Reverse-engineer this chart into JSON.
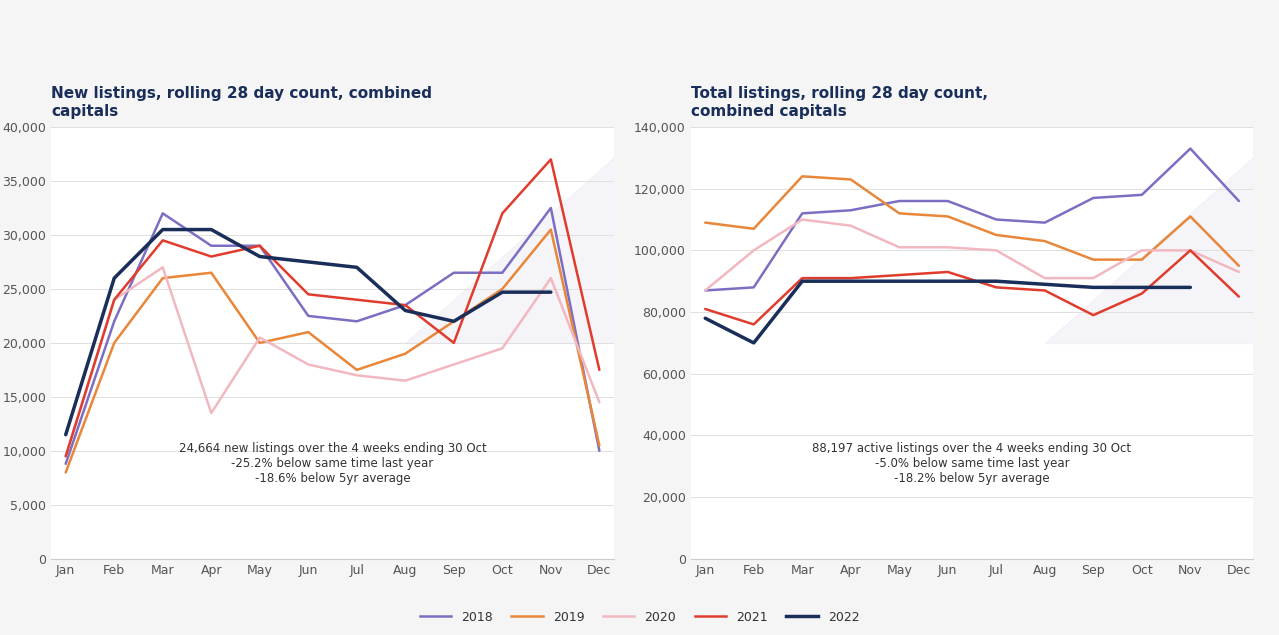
{
  "title_left": "New listings, rolling 28 day count, combined\ncapitals",
  "title_right": "Total listings, rolling 28 day count,\ncombined capitals",
  "title_color": "#1a2e5a",
  "background_color": "#f5f5f5",
  "chart_background": "#ffffff",
  "months": [
    "Jan",
    "Feb",
    "Mar",
    "Apr",
    "May",
    "Jun",
    "Jul",
    "Aug",
    "Sep",
    "Oct",
    "Nov",
    "Dec"
  ],
  "legend_labels": [
    "2018",
    "2019",
    "2020",
    "2021",
    "2022"
  ],
  "colors": {
    "2018": "#7b6fc4",
    "2019": "#e8873a",
    "2020": "#f2b8c0",
    "2021": "#e03c2e",
    "2022": "#1a2e5a"
  },
  "linewidths": {
    "2018": 1.8,
    "2019": 1.8,
    "2020": 1.8,
    "2021": 1.8,
    "2022": 2.5
  },
  "new_listings": {
    "2018": [
      8800,
      22000,
      32000,
      29000,
      29000,
      22500,
      22000,
      23500,
      26500,
      26500,
      32500,
      10000
    ],
    "2019": [
      8000,
      20000,
      26000,
      26500,
      20000,
      21000,
      17500,
      19000,
      22000,
      25000,
      30500,
      10500
    ],
    "2020": [
      9500,
      24000,
      27000,
      13500,
      20500,
      18000,
      17000,
      16500,
      18000,
      19500,
      26000,
      14500
    ],
    "2021": [
      9500,
      24000,
      29500,
      28000,
      29000,
      24500,
      24000,
      23500,
      20000,
      32000,
      37000,
      17500
    ],
    "2022": [
      11500,
      26000,
      30500,
      30500,
      28000,
      27500,
      27000,
      23000,
      22000,
      24700,
      24700,
      null
    ]
  },
  "total_listings": {
    "2018": [
      87000,
      88000,
      112000,
      113000,
      116000,
      116000,
      110000,
      109000,
      117000,
      118000,
      133000,
      116000
    ],
    "2019": [
      109000,
      107000,
      124000,
      123000,
      112000,
      111000,
      105000,
      103000,
      97000,
      97000,
      111000,
      95000
    ],
    "2020": [
      87000,
      100000,
      110000,
      108000,
      101000,
      101000,
      100000,
      91000,
      91000,
      100000,
      100000,
      93000
    ],
    "2021": [
      81000,
      76000,
      91000,
      91000,
      92000,
      93000,
      88000,
      87000,
      79000,
      86000,
      100000,
      85000
    ],
    "2022": [
      78000,
      70000,
      90000,
      90000,
      90000,
      90000,
      90000,
      89000,
      88000,
      88000,
      88000,
      null
    ]
  },
  "new_annotation": "24,664 new listings over the 4 weeks ending 30 Oct\n-25.2% below same time last year\n-18.6% below 5yr average",
  "total_annotation": "88,197 active listings over the 4 weeks ending 30 Oct\n-5.0% below same time last year\n-18.2% below 5yr average",
  "new_ylim": [
    0,
    40000
  ],
  "new_yticks": [
    0,
    5000,
    10000,
    15000,
    20000,
    25000,
    30000,
    35000,
    40000
  ],
  "total_ylim": [
    0,
    140000
  ],
  "total_yticks": [
    0,
    20000,
    40000,
    60000,
    80000,
    100000,
    120000,
    140000
  ]
}
